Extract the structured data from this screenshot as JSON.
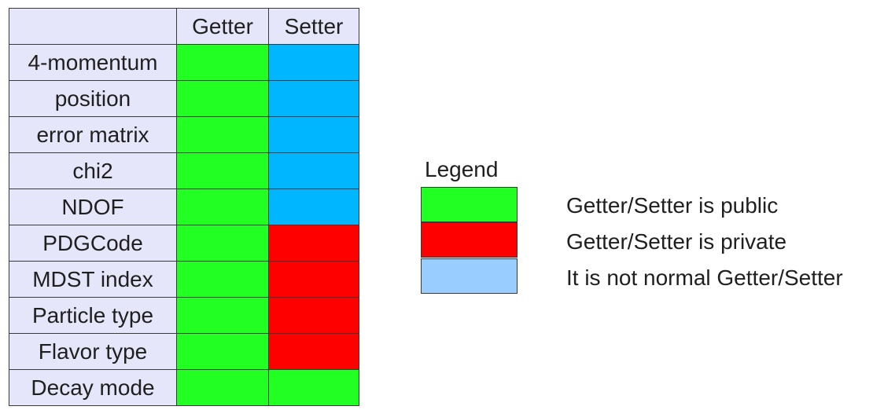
{
  "colors": {
    "public": "#22ff22",
    "private": "#ff0000",
    "not_normal": "#00b7ff",
    "legend_not_normal": "#99ccff",
    "header_bg": "#e6e6fa"
  },
  "table": {
    "columns": [
      "Getter",
      "Setter"
    ],
    "rows": [
      {
        "label": "4-momentum",
        "getter": "public",
        "setter": "not_normal"
      },
      {
        "label": "position",
        "getter": "public",
        "setter": "not_normal"
      },
      {
        "label": "error matrix",
        "getter": "public",
        "setter": "not_normal"
      },
      {
        "label": "chi2",
        "getter": "public",
        "setter": "not_normal"
      },
      {
        "label": "NDOF",
        "getter": "public",
        "setter": "not_normal"
      },
      {
        "label": "PDGCode",
        "getter": "public",
        "setter": "private"
      },
      {
        "label": "MDST index",
        "getter": "public",
        "setter": "private"
      },
      {
        "label": "Particle type",
        "getter": "public",
        "setter": "private"
      },
      {
        "label": "Flavor type",
        "getter": "public",
        "setter": "private"
      },
      {
        "label": "Decay mode",
        "getter": "public",
        "setter": "public"
      }
    ]
  },
  "legend": {
    "title": "Legend",
    "items": [
      {
        "key": "public",
        "text": "Getter/Setter is public"
      },
      {
        "key": "private",
        "text": "Getter/Setter is private"
      },
      {
        "key": "legend_not_normal",
        "text": "It is not normal Getter/Setter"
      }
    ]
  }
}
